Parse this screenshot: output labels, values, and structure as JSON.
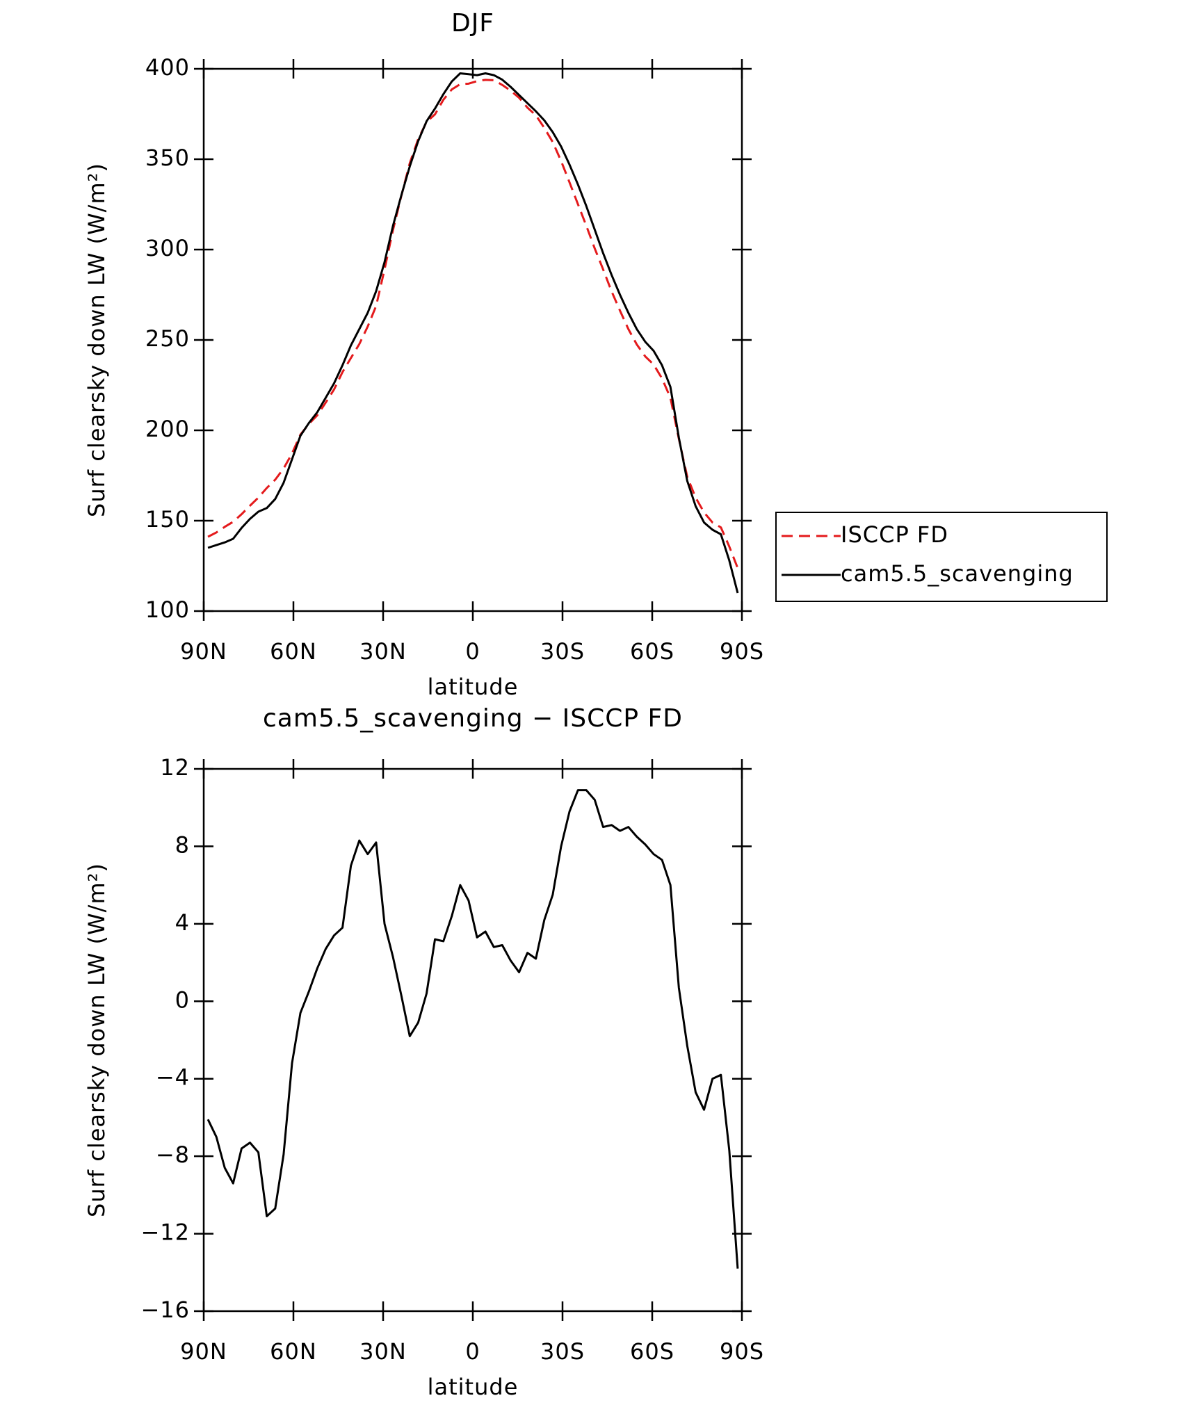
{
  "chart_data": [
    {
      "type": "line",
      "title": "DJF",
      "ylabel": "Surf clearsky down LW (W/m²)",
      "xlabel": "latitude",
      "x": [
        88.59,
        85.78,
        82.97,
        80.16,
        77.34,
        74.53,
        71.72,
        68.91,
        66.09,
        63.28,
        60.47,
        57.66,
        54.84,
        52.03,
        49.22,
        46.41,
        43.59,
        40.78,
        37.97,
        35.16,
        32.34,
        29.53,
        26.72,
        23.91,
        21.09,
        18.28,
        15.47,
        12.66,
        9.84,
        7.03,
        4.22,
        1.41,
        -1.41,
        -4.22,
        -7.03,
        -9.84,
        -12.66,
        -15.47,
        -18.28,
        -21.09,
        -23.91,
        -26.72,
        -29.53,
        -32.34,
        -35.16,
        -37.97,
        -40.78,
        -43.59,
        -46.41,
        -49.22,
        -52.03,
        -54.84,
        -57.66,
        -60.47,
        -63.28,
        -66.09,
        -68.91,
        -71.72,
        -74.53,
        -77.34,
        -80.16,
        -82.97,
        -85.78,
        -88.59
      ],
      "series": [
        {
          "name": "ISCCP FD",
          "color": "#e41a1c",
          "dash": "dashed",
          "values": [
            141.1,
            143.5,
            146.6,
            149.4,
            153.6,
            158.3,
            162.8,
            168.1,
            172.7,
            178.9,
            187.2,
            197.6,
            203.5,
            208.3,
            215.3,
            222.6,
            232.2,
            240,
            247.7,
            257.4,
            268.8,
            289,
            310.7,
            329.7,
            347.8,
            361.1,
            370.6,
            374.8,
            382.9,
            388.6,
            391.5,
            391.8,
            393.2,
            393.9,
            393.7,
            391.1,
            387.9,
            384,
            378.5,
            374.3,
            367.3,
            359.5,
            349,
            337.2,
            325.1,
            313.1,
            300.6,
            289,
            276.9,
            266.2,
            256,
            247.5,
            240.9,
            236.4,
            228.7,
            218,
            195.3,
            174.3,
            162.7,
            154.6,
            149,
            146.3,
            135.7,
            123.8
          ]
        },
        {
          "name": "cam5.5_scavenging",
          "color": "#000000",
          "dash": "solid",
          "values": [
            135,
            136.5,
            138,
            140,
            146,
            151,
            155,
            157,
            162,
            171,
            184,
            197,
            204,
            210,
            218,
            226,
            236,
            247,
            256,
            265,
            277,
            293,
            313,
            330,
            346,
            360,
            371,
            378,
            386,
            393,
            397.5,
            397,
            396.5,
            397.5,
            396.5,
            394,
            390,
            385.5,
            381,
            376.5,
            371.5,
            365,
            357,
            347,
            336,
            324,
            311,
            298,
            286,
            275,
            265,
            256,
            249,
            244,
            236,
            224,
            196,
            172,
            158,
            149,
            145,
            142.5,
            128,
            110
          ]
        }
      ],
      "xlim": [
        90,
        -90
      ],
      "xticks": [
        {
          "value": 90,
          "label": "90N"
        },
        {
          "value": 60,
          "label": "60N"
        },
        {
          "value": 30,
          "label": "30N"
        },
        0,
        {
          "value": -30,
          "label": "30S"
        },
        {
          "value": -60,
          "label": "60S"
        },
        {
          "value": -90,
          "label": "90S"
        }
      ],
      "ylim": [
        100,
        400
      ],
      "yticks": [
        100,
        150,
        200,
        250,
        300,
        350,
        400
      ],
      "legend": "right"
    },
    {
      "type": "line",
      "title": "cam5.5_scavenging − ISCCP FD",
      "ylabel": "Surf clearsky down LW (W/m²)",
      "xlabel": "latitude",
      "x": [
        88.59,
        85.78,
        82.97,
        80.16,
        77.34,
        74.53,
        71.72,
        68.91,
        66.09,
        63.28,
        60.47,
        57.66,
        54.84,
        52.03,
        49.22,
        46.41,
        43.59,
        40.78,
        37.97,
        35.16,
        32.34,
        29.53,
        26.72,
        23.91,
        21.09,
        18.28,
        15.47,
        12.66,
        9.84,
        7.03,
        4.22,
        1.41,
        -1.41,
        -4.22,
        -7.03,
        -9.84,
        -12.66,
        -15.47,
        -18.28,
        -21.09,
        -23.91,
        -26.72,
        -29.53,
        -32.34,
        -35.16,
        -37.97,
        -40.78,
        -43.59,
        -46.41,
        -49.22,
        -52.03,
        -54.84,
        -57.66,
        -60.47,
        -63.28,
        -66.09,
        -68.91,
        -71.72,
        -74.53,
        -77.34,
        -80.16,
        -82.97,
        -85.78,
        -88.59
      ],
      "series": [
        {
          "color": "#000000",
          "dash": "solid",
          "values": [
            -6.1,
            -7.0,
            -8.6,
            -9.4,
            -7.6,
            -7.3,
            -7.8,
            -11.1,
            -10.7,
            -7.9,
            -3.2,
            -0.6,
            0.5,
            1.7,
            2.7,
            3.4,
            3.8,
            7.0,
            8.3,
            7.6,
            8.2,
            4.0,
            2.3,
            0.3,
            -1.8,
            -1.1,
            0.4,
            3.2,
            3.1,
            4.4,
            6.0,
            5.2,
            3.3,
            3.6,
            2.8,
            2.9,
            2.1,
            1.5,
            2.5,
            2.2,
            4.2,
            5.5,
            8.0,
            9.8,
            10.9,
            10.9,
            10.4,
            9.0,
            9.1,
            8.8,
            9.0,
            8.5,
            8.1,
            7.6,
            7.3,
            6.0,
            0.7,
            -2.3,
            -4.7,
            -5.6,
            -4.0,
            -3.8,
            -7.7,
            -13.8
          ]
        }
      ],
      "xlim": [
        90,
        -90
      ],
      "xticks": [
        {
          "value": 90,
          "label": "90N"
        },
        {
          "value": 60,
          "label": "60N"
        },
        {
          "value": 30,
          "label": "30N"
        },
        0,
        {
          "value": -30,
          "label": "30S"
        },
        {
          "value": -60,
          "label": "60S"
        },
        {
          "value": -90,
          "label": "90S"
        }
      ],
      "ylim": [
        -16,
        12
      ],
      "yticks": [
        {
          "value": -16,
          "label": "−16"
        },
        {
          "value": -12,
          "label": "−12"
        },
        {
          "value": -8,
          "label": "−8"
        },
        {
          "value": -4,
          "label": "−4"
        },
        0,
        4,
        8,
        12
      ]
    }
  ]
}
